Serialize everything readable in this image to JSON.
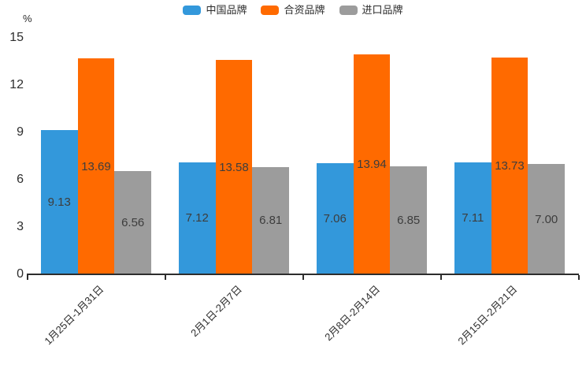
{
  "chart_data": {
    "type": "bar",
    "unit_label": "%",
    "categories": [
      "1月25日-1月31日",
      "2月1日-2月7日",
      "2月8日-2月14日",
      "2月15日-2月21日"
    ],
    "series": [
      {
        "name": "中国品牌",
        "color": "#3398db",
        "values": [
          9.13,
          7.12,
          7.06,
          7.11
        ]
      },
      {
        "name": "合资品牌",
        "color": "#ff6a00",
        "values": [
          13.69,
          13.58,
          13.94,
          13.73
        ]
      },
      {
        "name": "进口品牌",
        "color": "#9c9c9c",
        "values": [
          6.56,
          6.81,
          6.85,
          7.0
        ]
      }
    ],
    "ylim": [
      0,
      15
    ],
    "yticks": [
      0,
      3,
      6,
      9,
      12,
      15
    ],
    "value_label_decimals": 2,
    "grid": false,
    "legend_position": "top",
    "colors": {
      "axis": "#2d2d2d",
      "bar_label": "#3d3d3d",
      "series_blue": "#3398db",
      "series_orange": "#ff6a00",
      "series_gray": "#9c9c9c"
    }
  }
}
